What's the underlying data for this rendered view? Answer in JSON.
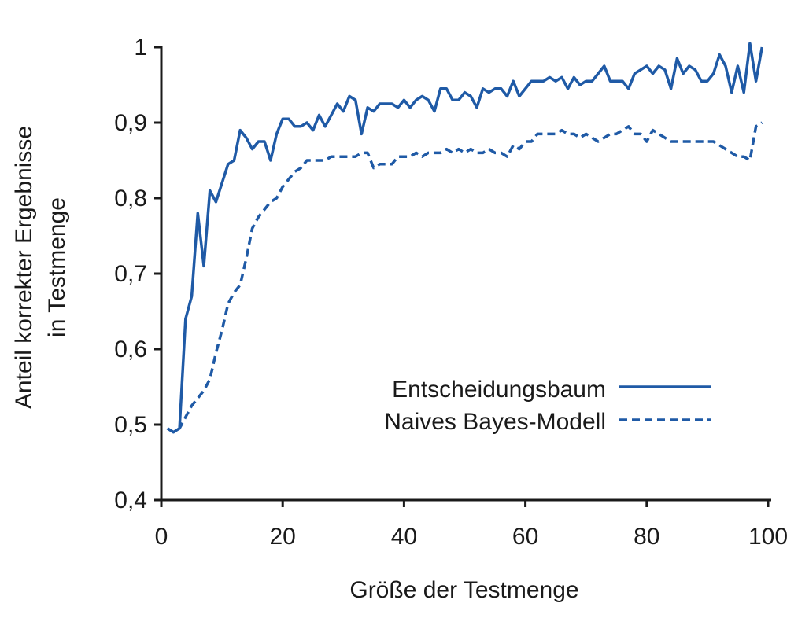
{
  "chart_data": {
    "type": "line",
    "xlabel": "Größe der Testmenge",
    "ylabel_line1": "Anteil korrekter Ergebnisse",
    "ylabel_line2": "in Testmenge",
    "xlim": [
      0,
      100
    ],
    "ylim": [
      0.4,
      1.0
    ],
    "xticks": [
      0,
      20,
      40,
      60,
      80,
      100
    ],
    "xtick_labels": [
      "0",
      "20",
      "40",
      "60",
      "80",
      "100"
    ],
    "yticks": [
      0.4,
      0.5,
      0.6,
      0.7,
      0.8,
      0.9,
      1.0
    ],
    "ytick_labels": [
      "0,4",
      "0,5",
      "0,6",
      "0,7",
      "0,8",
      "0,9",
      "1"
    ],
    "grid": false,
    "legend_position": "center-right",
    "line_color": "#1f5aa6",
    "series": [
      {
        "name": "Entscheidungsbaum",
        "style": "solid",
        "x": [
          1,
          2,
          3,
          4,
          5,
          6,
          7,
          8,
          9,
          10,
          11,
          12,
          13,
          14,
          15,
          16,
          17,
          18,
          19,
          20,
          21,
          22,
          23,
          24,
          25,
          26,
          27,
          28,
          29,
          30,
          31,
          32,
          33,
          34,
          35,
          36,
          37,
          38,
          39,
          40,
          41,
          42,
          43,
          44,
          45,
          46,
          47,
          48,
          49,
          50,
          51,
          52,
          53,
          54,
          55,
          56,
          57,
          58,
          59,
          60,
          61,
          62,
          63,
          64,
          65,
          66,
          67,
          68,
          69,
          70,
          71,
          72,
          73,
          74,
          75,
          76,
          77,
          78,
          79,
          80,
          81,
          82,
          83,
          84,
          85,
          86,
          87,
          88,
          89,
          90,
          91,
          92,
          93,
          94,
          95,
          96,
          97,
          98,
          99
        ],
        "values": [
          0.495,
          0.49,
          0.495,
          0.64,
          0.67,
          0.78,
          0.71,
          0.81,
          0.795,
          0.82,
          0.845,
          0.85,
          0.89,
          0.88,
          0.865,
          0.875,
          0.875,
          0.85,
          0.885,
          0.905,
          0.905,
          0.895,
          0.895,
          0.9,
          0.89,
          0.91,
          0.895,
          0.91,
          0.925,
          0.915,
          0.935,
          0.93,
          0.885,
          0.92,
          0.915,
          0.925,
          0.925,
          0.925,
          0.92,
          0.93,
          0.92,
          0.93,
          0.935,
          0.93,
          0.915,
          0.945,
          0.945,
          0.93,
          0.93,
          0.94,
          0.935,
          0.92,
          0.945,
          0.94,
          0.945,
          0.945,
          0.935,
          0.955,
          0.935,
          0.945,
          0.955,
          0.955,
          0.955,
          0.96,
          0.955,
          0.96,
          0.945,
          0.96,
          0.95,
          0.955,
          0.955,
          0.965,
          0.975,
          0.955,
          0.955,
          0.955,
          0.945,
          0.965,
          0.97,
          0.975,
          0.965,
          0.975,
          0.97,
          0.945,
          0.985,
          0.965,
          0.975,
          0.97,
          0.955,
          0.955,
          0.965,
          0.99,
          0.975,
          0.94,
          0.975,
          0.94,
          1.005,
          0.955,
          1.0
        ]
      },
      {
        "name": "Naives Bayes-Modell",
        "style": "dashed",
        "x": [
          1,
          2,
          3,
          4,
          5,
          6,
          7,
          8,
          9,
          10,
          11,
          12,
          13,
          14,
          15,
          16,
          17,
          18,
          19,
          20,
          21,
          22,
          23,
          24,
          25,
          26,
          27,
          28,
          29,
          30,
          31,
          32,
          33,
          34,
          35,
          36,
          37,
          38,
          39,
          40,
          41,
          42,
          43,
          44,
          45,
          46,
          47,
          48,
          49,
          50,
          51,
          52,
          53,
          54,
          55,
          56,
          57,
          58,
          59,
          60,
          61,
          62,
          63,
          64,
          65,
          66,
          67,
          68,
          69,
          70,
          71,
          72,
          73,
          74,
          75,
          76,
          77,
          78,
          79,
          80,
          81,
          82,
          83,
          84,
          85,
          86,
          87,
          88,
          89,
          90,
          91,
          92,
          93,
          94,
          95,
          96,
          97,
          98,
          99
        ],
        "values": [
          0.495,
          0.49,
          0.495,
          0.51,
          0.525,
          0.535,
          0.545,
          0.56,
          0.595,
          0.625,
          0.66,
          0.675,
          0.685,
          0.72,
          0.76,
          0.775,
          0.785,
          0.795,
          0.8,
          0.815,
          0.825,
          0.835,
          0.84,
          0.85,
          0.85,
          0.85,
          0.85,
          0.855,
          0.855,
          0.855,
          0.855,
          0.855,
          0.86,
          0.86,
          0.84,
          0.845,
          0.845,
          0.845,
          0.855,
          0.855,
          0.855,
          0.86,
          0.855,
          0.86,
          0.86,
          0.86,
          0.865,
          0.86,
          0.865,
          0.86,
          0.865,
          0.86,
          0.86,
          0.865,
          0.86,
          0.86,
          0.855,
          0.87,
          0.865,
          0.875,
          0.875,
          0.885,
          0.885,
          0.885,
          0.885,
          0.89,
          0.885,
          0.885,
          0.88,
          0.885,
          0.88,
          0.875,
          0.88,
          0.885,
          0.885,
          0.89,
          0.895,
          0.885,
          0.885,
          0.875,
          0.89,
          0.885,
          0.88,
          0.875,
          0.875,
          0.875,
          0.875,
          0.875,
          0.875,
          0.875,
          0.875,
          0.87,
          0.865,
          0.86,
          0.855,
          0.855,
          0.85,
          0.895,
          0.9
        ]
      }
    ]
  }
}
